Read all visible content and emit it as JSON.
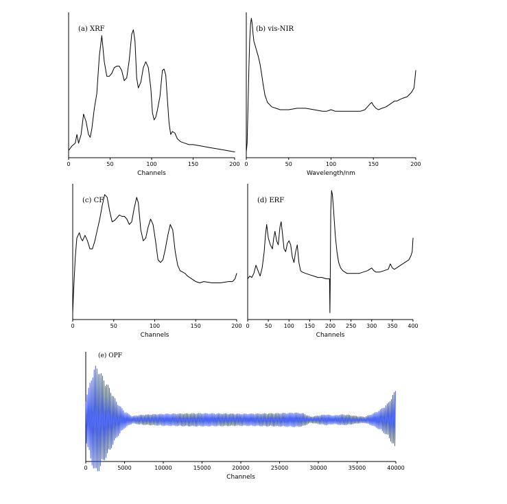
{
  "chart_data": [
    {
      "type": "line",
      "title": "(a) XRF",
      "xlabel": "Channels",
      "xlim": [
        0,
        200
      ],
      "xticks": [
        0,
        50,
        100,
        150,
        200
      ],
      "color": "#000000",
      "series": [
        {
          "x": [
            0,
            4,
            8,
            10,
            12,
            15,
            18,
            21,
            24,
            26,
            28,
            31,
            34,
            37,
            40,
            43,
            46,
            49,
            52,
            55,
            58,
            61,
            64,
            67,
            70,
            73,
            76,
            78,
            80,
            82,
            84,
            87,
            90,
            93,
            96,
            99,
            101,
            103,
            105,
            107,
            110,
            113,
            115,
            117,
            119,
            121,
            123,
            125,
            128,
            131,
            135,
            140,
            145,
            150,
            160,
            170,
            180,
            190,
            200
          ],
          "y": [
            0.05,
            0.08,
            0.1,
            0.16,
            0.1,
            0.16,
            0.3,
            0.25,
            0.16,
            0.14,
            0.2,
            0.34,
            0.44,
            0.7,
            0.84,
            0.66,
            0.56,
            0.56,
            0.58,
            0.62,
            0.63,
            0.63,
            0.6,
            0.53,
            0.55,
            0.67,
            0.85,
            0.88,
            0.8,
            0.55,
            0.48,
            0.52,
            0.62,
            0.66,
            0.62,
            0.48,
            0.31,
            0.26,
            0.28,
            0.33,
            0.42,
            0.6,
            0.61,
            0.57,
            0.4,
            0.24,
            0.16,
            0.18,
            0.17,
            0.13,
            0.11,
            0.1,
            0.09,
            0.09,
            0.08,
            0.07,
            0.06,
            0.05,
            0.04
          ]
        }
      ]
    },
    {
      "type": "line",
      "title": "(b) vis-NIR",
      "xlabel": "Wavelength/nm",
      "xlim": [
        0,
        200
      ],
      "xticks": [
        0,
        50,
        100,
        150,
        200
      ],
      "color": "#000000",
      "series": [
        {
          "x": [
            0,
            1,
            2,
            3,
            4,
            5,
            6,
            7,
            8,
            9,
            10,
            12,
            14,
            16,
            18,
            20,
            22,
            25,
            30,
            35,
            40,
            50,
            60,
            70,
            80,
            90,
            95,
            100,
            105,
            110,
            120,
            130,
            135,
            140,
            143,
            146,
            148,
            150,
            153,
            156,
            160,
            165,
            170,
            175,
            178,
            181,
            185,
            190,
            195,
            198,
            200
          ],
          "y": [
            0.04,
            0.1,
            0.35,
            0.6,
            0.8,
            0.92,
            0.96,
            0.92,
            0.85,
            0.8,
            0.78,
            0.74,
            0.7,
            0.65,
            0.58,
            0.5,
            0.43,
            0.38,
            0.35,
            0.34,
            0.33,
            0.33,
            0.34,
            0.34,
            0.33,
            0.32,
            0.32,
            0.33,
            0.32,
            0.32,
            0.32,
            0.32,
            0.32,
            0.33,
            0.35,
            0.37,
            0.38,
            0.36,
            0.34,
            0.33,
            0.34,
            0.35,
            0.37,
            0.39,
            0.39,
            0.4,
            0.41,
            0.42,
            0.45,
            0.48,
            0.6
          ]
        }
      ]
    },
    {
      "type": "line",
      "title": "(c) CF",
      "xlabel": "Channels",
      "xlim": [
        0,
        200
      ],
      "xticks": [
        0,
        50,
        100,
        150,
        200
      ],
      "color": "#000000",
      "series": [
        {
          "x": [
            0,
            1,
            3,
            5,
            8,
            10,
            12,
            15,
            18,
            21,
            24,
            27,
            30,
            33,
            36,
            39,
            42,
            45,
            48,
            51,
            54,
            57,
            60,
            63,
            66,
            69,
            72,
            75,
            78,
            80,
            83,
            86,
            89,
            92,
            95,
            98,
            101,
            104,
            107,
            110,
            113,
            116,
            119,
            122,
            125,
            128,
            131,
            134,
            137,
            140,
            145,
            150,
            155,
            160,
            170,
            180,
            190,
            195,
            198,
            200
          ],
          "y": [
            0.05,
            0.2,
            0.45,
            0.6,
            0.64,
            0.6,
            0.58,
            0.62,
            0.58,
            0.52,
            0.52,
            0.58,
            0.66,
            0.74,
            0.84,
            0.92,
            0.9,
            0.8,
            0.72,
            0.73,
            0.75,
            0.77,
            0.76,
            0.76,
            0.74,
            0.7,
            0.72,
            0.82,
            0.9,
            0.86,
            0.66,
            0.58,
            0.6,
            0.68,
            0.74,
            0.7,
            0.58,
            0.44,
            0.42,
            0.44,
            0.52,
            0.62,
            0.7,
            0.66,
            0.5,
            0.4,
            0.36,
            0.35,
            0.34,
            0.32,
            0.3,
            0.28,
            0.27,
            0.28,
            0.27,
            0.27,
            0.28,
            0.28,
            0.3,
            0.34
          ]
        }
      ]
    },
    {
      "type": "line",
      "title": "(d) ERF",
      "xlabel": "Channels",
      "xlim": [
        0,
        400
      ],
      "xticks": [
        0,
        50,
        100,
        150,
        200,
        250,
        300,
        350,
        400
      ],
      "color": "#000000",
      "series": [
        {
          "x": [
            0,
            5,
            10,
            15,
            20,
            25,
            30,
            35,
            40,
            43,
            46,
            50,
            55,
            60,
            63,
            66,
            70,
            74,
            78,
            81,
            84,
            88,
            92,
            96,
            100,
            104,
            108,
            112,
            116,
            120,
            124,
            128,
            132,
            140,
            150,
            160,
            170,
            180,
            190,
            198,
            199,
            200,
            201,
            203,
            205,
            208,
            212,
            216,
            220,
            225,
            230,
            240,
            250,
            260,
            270,
            280,
            290,
            300,
            305,
            310,
            320,
            330,
            340,
            345,
            350,
            355,
            360,
            370,
            380,
            390,
            395,
            398,
            400
          ],
          "y": [
            0.3,
            0.32,
            0.31,
            0.34,
            0.4,
            0.36,
            0.32,
            0.38,
            0.5,
            0.62,
            0.7,
            0.6,
            0.55,
            0.52,
            0.6,
            0.65,
            0.58,
            0.55,
            0.68,
            0.72,
            0.64,
            0.52,
            0.5,
            0.56,
            0.58,
            0.55,
            0.46,
            0.42,
            0.5,
            0.55,
            0.42,
            0.36,
            0.35,
            0.34,
            0.33,
            0.32,
            0.31,
            0.31,
            0.3,
            0.3,
            0.05,
            0.38,
            0.8,
            0.95,
            0.92,
            0.8,
            0.62,
            0.5,
            0.42,
            0.38,
            0.36,
            0.34,
            0.34,
            0.34,
            0.34,
            0.35,
            0.36,
            0.38,
            0.36,
            0.35,
            0.35,
            0.36,
            0.37,
            0.41,
            0.38,
            0.37,
            0.38,
            0.4,
            0.42,
            0.44,
            0.47,
            0.5,
            0.6
          ]
        }
      ]
    },
    {
      "type": "line",
      "title": "(e) OPF",
      "xlabel": "Channels",
      "xlim": [
        0,
        40000
      ],
      "xticks": [
        0,
        5000,
        10000,
        15000,
        20000,
        25000,
        30000,
        35000,
        40000
      ],
      "color": "#1f3ff0",
      "series": [
        {
          "oscillation_period": 180,
          "envelope_x": [
            0,
            300,
            800,
            1200,
            1700,
            2200,
            3000,
            4000,
            5000,
            6000,
            7000,
            10000,
            15000,
            20000,
            25000,
            27000,
            28000,
            29000,
            30000,
            31000,
            32000,
            33000,
            34000,
            35000,
            36000,
            37000,
            38000,
            39000,
            39600,
            40000
          ],
          "envelope_amp": [
            0.35,
            0.5,
            0.75,
            0.9,
            0.85,
            0.72,
            0.55,
            0.3,
            0.14,
            0.06,
            0.08,
            0.1,
            0.11,
            0.1,
            0.11,
            0.12,
            0.11,
            0.05,
            0.07,
            0.09,
            0.07,
            0.09,
            0.08,
            0.06,
            0.05,
            0.1,
            0.17,
            0.28,
            0.42,
            0.5
          ]
        }
      ]
    }
  ]
}
